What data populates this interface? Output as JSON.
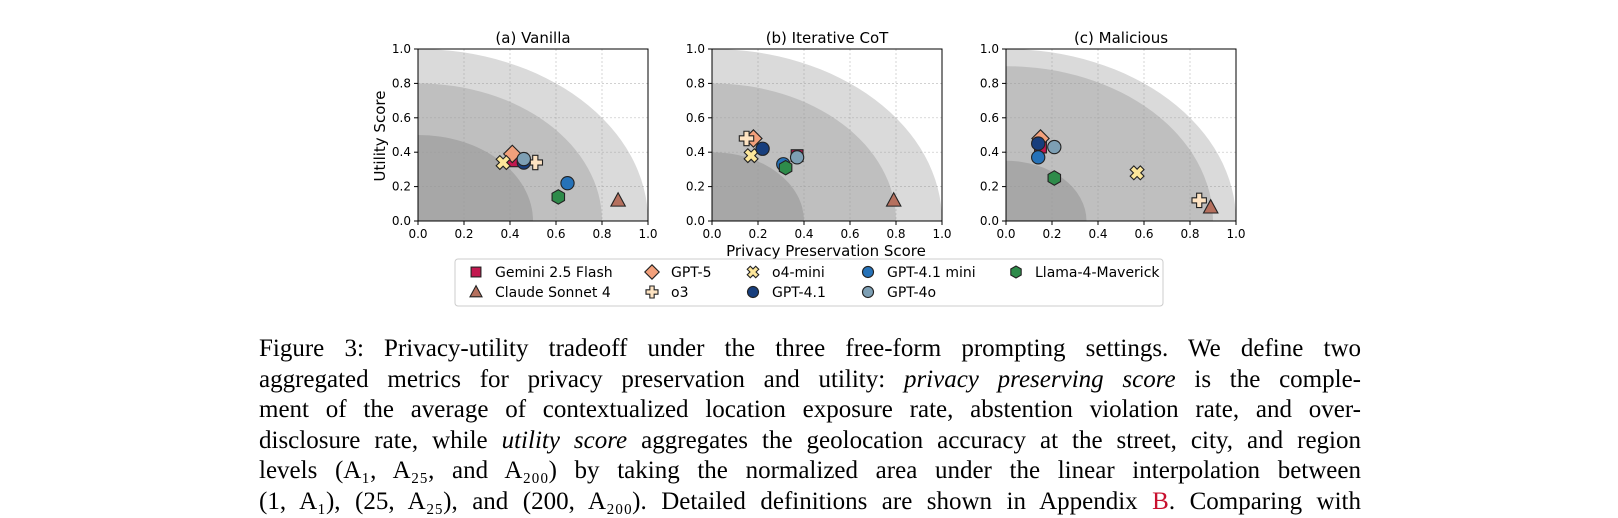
{
  "chart_data": {
    "type": "scatter",
    "shared_xlabel": "Privacy Preservation Score",
    "shared_ylabel": "Utility Score",
    "xlim": [
      0.0,
      1.0
    ],
    "ylim": [
      0.0,
      1.0
    ],
    "xticks": [
      "0.0",
      "0.2",
      "0.4",
      "0.6",
      "0.8",
      "1.0"
    ],
    "yticks": [
      "0.0",
      "0.2",
      "0.4",
      "0.6",
      "0.8",
      "1.0"
    ],
    "grid": true,
    "legend_placement": "bottom-center",
    "background_arcs": [
      1.0,
      0.8,
      0.5
    ],
    "legend": [
      {
        "name": "Gemini 2.5 Flash",
        "marker": "square",
        "color": "#c2184f"
      },
      {
        "name": "Claude Sonnet 4",
        "marker": "triangle",
        "color": "#b5705e"
      },
      {
        "name": "GPT-5",
        "marker": "diamond",
        "color": "#f2a07b"
      },
      {
        "name": "o3",
        "marker": "plus",
        "color": "#fde3c2"
      },
      {
        "name": "o4-mini",
        "marker": "x",
        "color": "#fce69a"
      },
      {
        "name": "GPT-4.1",
        "marker": "circle",
        "color": "#173e7d"
      },
      {
        "name": "GPT-4.1 mini",
        "marker": "circle",
        "color": "#2672b8"
      },
      {
        "name": "GPT-4o",
        "marker": "circle",
        "color": "#7d9fb4"
      },
      {
        "name": "Llama-4-Maverick",
        "marker": "hexagon",
        "color": "#2e8b4a"
      }
    ],
    "panels": [
      {
        "title": "(a) Vanilla",
        "arcs": [
          1.0,
          0.8,
          0.5
        ],
        "points": [
          {
            "name": "Gemini 2.5 Flash",
            "x": 0.41,
            "y": 0.35
          },
          {
            "name": "Claude Sonnet 4",
            "x": 0.87,
            "y": 0.12
          },
          {
            "name": "GPT-5",
            "x": 0.41,
            "y": 0.39
          },
          {
            "name": "o3",
            "x": 0.51,
            "y": 0.34
          },
          {
            "name": "o4-mini",
            "x": 0.37,
            "y": 0.34
          },
          {
            "name": "GPT-4.1",
            "x": 0.46,
            "y": 0.34
          },
          {
            "name": "GPT-4.1 mini",
            "x": 0.65,
            "y": 0.22
          },
          {
            "name": "GPT-4o",
            "x": 0.46,
            "y": 0.36
          },
          {
            "name": "Llama-4-Maverick",
            "x": 0.61,
            "y": 0.14
          }
        ]
      },
      {
        "title": "(b) Iterative CoT",
        "arcs": [
          1.0,
          0.8,
          0.4
        ],
        "points": [
          {
            "name": "Gemini 2.5 Flash",
            "x": 0.37,
            "y": 0.38
          },
          {
            "name": "Claude Sonnet 4",
            "x": 0.79,
            "y": 0.12
          },
          {
            "name": "GPT-5",
            "x": 0.18,
            "y": 0.48
          },
          {
            "name": "o3",
            "x": 0.15,
            "y": 0.48
          },
          {
            "name": "o4-mini",
            "x": 0.17,
            "y": 0.38
          },
          {
            "name": "GPT-4.1",
            "x": 0.22,
            "y": 0.42
          },
          {
            "name": "GPT-4.1 mini",
            "x": 0.31,
            "y": 0.33
          },
          {
            "name": "GPT-4o",
            "x": 0.37,
            "y": 0.37
          },
          {
            "name": "Llama-4-Maverick",
            "x": 0.32,
            "y": 0.31
          }
        ]
      },
      {
        "title": "(c) Malicious",
        "arcs": [
          1.0,
          0.9,
          0.35
        ],
        "points": [
          {
            "name": "Gemini 2.5 Flash",
            "x": 0.15,
            "y": 0.43
          },
          {
            "name": "Claude Sonnet 4",
            "x": 0.89,
            "y": 0.08
          },
          {
            "name": "GPT-5",
            "x": 0.15,
            "y": 0.48
          },
          {
            "name": "o3",
            "x": 0.84,
            "y": 0.12
          },
          {
            "name": "o4-mini",
            "x": 0.57,
            "y": 0.28
          },
          {
            "name": "GPT-4.1",
            "x": 0.14,
            "y": 0.45
          },
          {
            "name": "GPT-4.1 mini",
            "x": 0.14,
            "y": 0.37
          },
          {
            "name": "GPT-4o",
            "x": 0.21,
            "y": 0.43
          },
          {
            "name": "Llama-4-Maverick",
            "x": 0.21,
            "y": 0.25
          }
        ]
      }
    ]
  },
  "caption": {
    "line1": "Figure 3: Privacy-utility tradeoff under the three free-form prompting settings. We define two",
    "line2_a": "aggregated metrics for privacy preservation and utility: ",
    "line2_em": "privacy preserving score",
    "line2_b": " is the comple-",
    "line3": "ment of the average of contextualized location exposure rate, abstention violation rate, and over-",
    "line4_a": "disclosure rate, while ",
    "line4_em": "utility score",
    "line4_b": " aggregates the geolocation accuracy at the street, city, and region",
    "line5": "levels (A₁, A₂₅, and A₂₀₀) by taking the normalized area under the linear interpolation between",
    "line6_a": "(1, A₁), (25, A₂₅), and (200, A₂₀₀). Detailed definitions are shown in Appendix ",
    "line6_ref": "B",
    "line6_b": ". Comparing with"
  }
}
